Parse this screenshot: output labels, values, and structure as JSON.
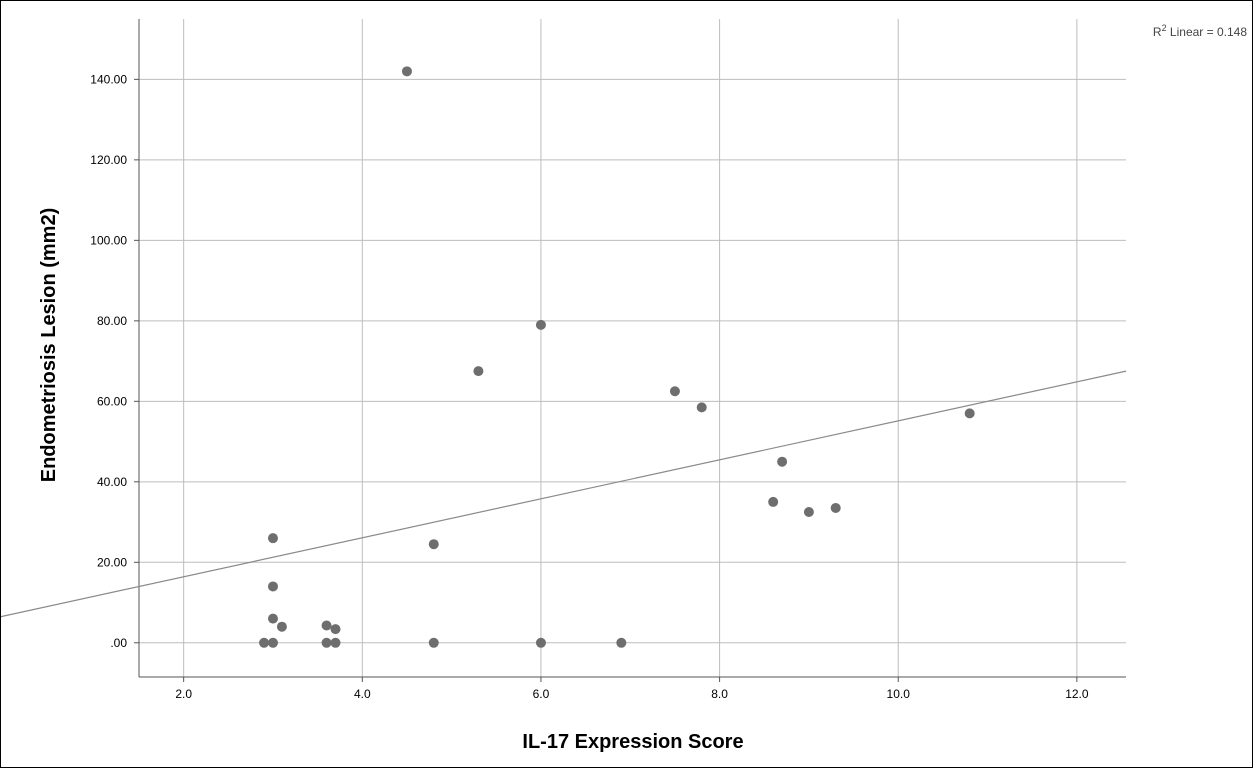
{
  "chart_data": {
    "type": "scatter",
    "xlabel": "IL-17 Expression Score",
    "ylabel": "Endometriosis Lesion (mm2)",
    "xlim": [
      1.5,
      12.55
    ],
    "ylim": [
      -8.5,
      155
    ],
    "xticks": [
      2.0,
      4.0,
      6.0,
      8.0,
      10.0,
      12.0
    ],
    "xtick_labels": [
      "2.0",
      "4.0",
      "6.0",
      "8.0",
      "10.0",
      "12.0"
    ],
    "yticks": [
      0,
      20,
      40,
      60,
      80,
      100,
      120,
      140
    ],
    "ytick_labels": [
      ".00",
      "20.00",
      "40.00",
      "60.00",
      "80.00",
      "100.00",
      "120.00",
      "140.00"
    ],
    "grid": true,
    "points": [
      {
        "x": 2.9,
        "y": 0
      },
      {
        "x": 3.0,
        "y": 0
      },
      {
        "x": 3.0,
        "y": 6.0
      },
      {
        "x": 3.1,
        "y": 4.0
      },
      {
        "x": 3.0,
        "y": 14.0
      },
      {
        "x": 3.0,
        "y": 26.0
      },
      {
        "x": 3.6,
        "y": 0
      },
      {
        "x": 3.7,
        "y": 0
      },
      {
        "x": 3.6,
        "y": 4.3
      },
      {
        "x": 3.7,
        "y": 3.4
      },
      {
        "x": 4.5,
        "y": 142.0
      },
      {
        "x": 4.8,
        "y": 0
      },
      {
        "x": 4.8,
        "y": 24.5
      },
      {
        "x": 5.3,
        "y": 67.5
      },
      {
        "x": 6.0,
        "y": 79.0
      },
      {
        "x": 6.0,
        "y": 0
      },
      {
        "x": 6.9,
        "y": 0
      },
      {
        "x": 7.5,
        "y": 62.5
      },
      {
        "x": 7.8,
        "y": 58.5
      },
      {
        "x": 8.6,
        "y": 35.0
      },
      {
        "x": 8.7,
        "y": 45.0
      },
      {
        "x": 9.0,
        "y": 32.5
      },
      {
        "x": 9.3,
        "y": 33.5
      },
      {
        "x": 10.8,
        "y": 57.0
      }
    ],
    "fit_line": {
      "type": "linear",
      "x": [
        1.5,
        12.55
      ],
      "y": [
        6.5,
        67.5
      ]
    },
    "annotation": {
      "prefix": "R",
      "superscript": "2",
      "text": " Linear = 0.148"
    }
  },
  "colors": {
    "point": "#6e6e6e",
    "grid": "#bdbdbd",
    "fit_line": "#8a8a8a",
    "axis": "#555555"
  }
}
